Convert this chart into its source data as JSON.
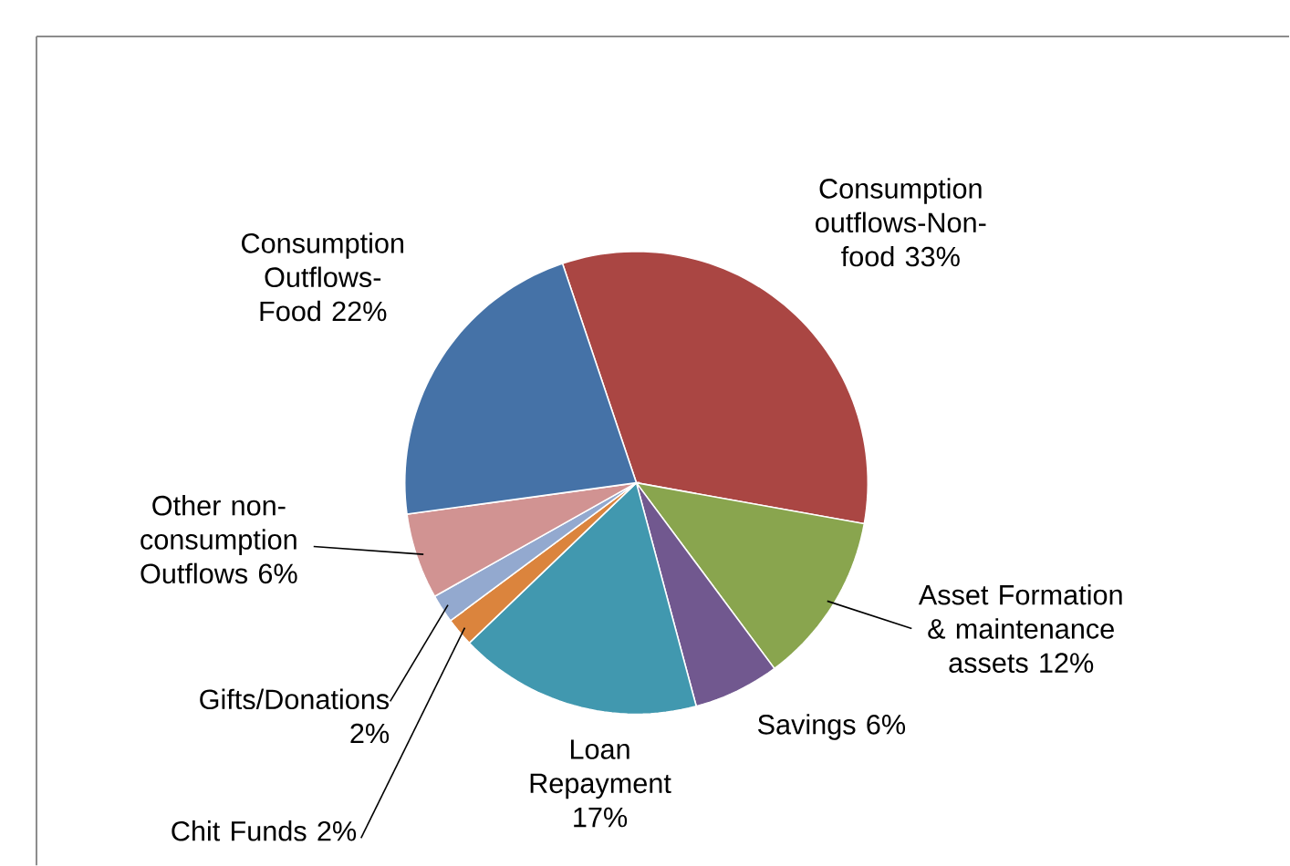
{
  "chart_data": {
    "type": "pie",
    "categories": [
      "Consumption outflows-Non-food",
      "Asset Formation & maintenance assets",
      "Savings",
      "Loan Repayment",
      "Chit Funds",
      "Gifts/Donations",
      "Other non-consumption Outflows",
      "Consumption Outflows-Food"
    ],
    "values": [
      33,
      12,
      6,
      17,
      2,
      2,
      6,
      22
    ],
    "colors": [
      "#aa4643",
      "#89a54e",
      "#71588f",
      "#4198af",
      "#db843d",
      "#93a9cf",
      "#d19392",
      "#4572a7"
    ],
    "value_labels": [
      "33%",
      "12%",
      "6%",
      "17%",
      "2%",
      "2%",
      "6%",
      "22%"
    ],
    "legend": false
  }
}
